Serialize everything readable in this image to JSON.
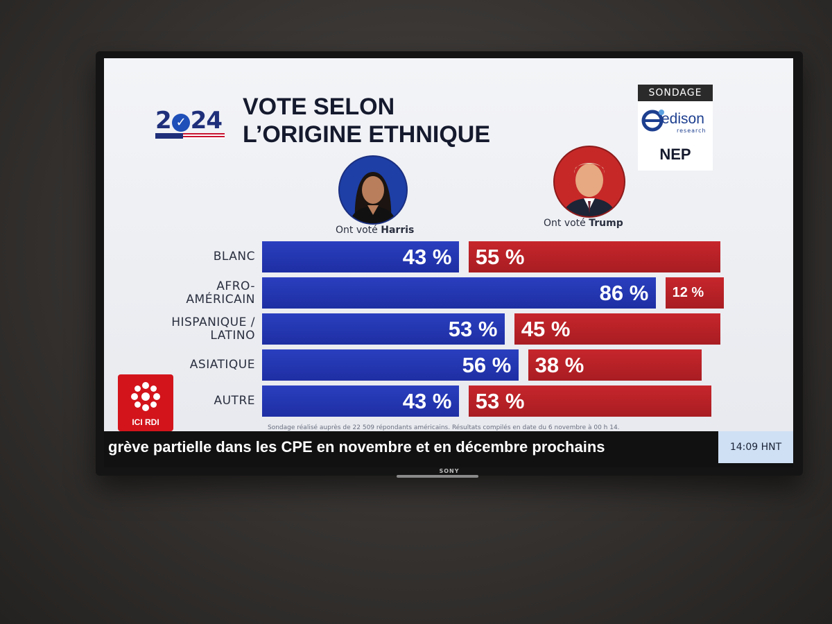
{
  "logo": {
    "year_left": "2",
    "year_right": "24"
  },
  "title": {
    "line1": "VOTE SELON",
    "line2": "L’ORIGINE ETHNIQUE"
  },
  "source": {
    "label": "SONDAGE",
    "brand": "edison",
    "brand_sub": "research",
    "org": "NEP"
  },
  "candidates": {
    "harris": {
      "prefix": "Ont voté",
      "name": "Harris",
      "color": "#1e2ea3"
    },
    "trump": {
      "prefix": "Ont voté",
      "name": "Trump",
      "color": "#b3201f"
    }
  },
  "chart_data": {
    "type": "bar",
    "orientation": "horizontal-diverging",
    "categories": [
      "BLANC",
      "AFRO-\nAMÉRICAIN",
      "HISPANIQUE /\nLATINO",
      "ASIATIQUE",
      "AUTRE"
    ],
    "series": [
      {
        "name": "Harris",
        "values": [
          43,
          86,
          53,
          56,
          43
        ],
        "labels": [
          "43 %",
          "86 %",
          "53 %",
          "56 %",
          "43 %"
        ]
      },
      {
        "name": "Trump",
        "values": [
          55,
          12,
          45,
          38,
          53
        ],
        "labels": [
          "55 %",
          "12 %",
          "45 %",
          "38 %",
          "53 %"
        ]
      }
    ],
    "unit": "%"
  },
  "footnote": "Sondage réalisé auprès de 22 509 répondants américains. Résultats compilés en date du 6 novembre à 00 h 14.",
  "network": {
    "name": "ICI RDI"
  },
  "ticker": {
    "text": "grève partielle dans les CPE en novembre et en décembre prochains",
    "time": "14:09 HNT"
  },
  "tv": {
    "brand": "SONY"
  }
}
